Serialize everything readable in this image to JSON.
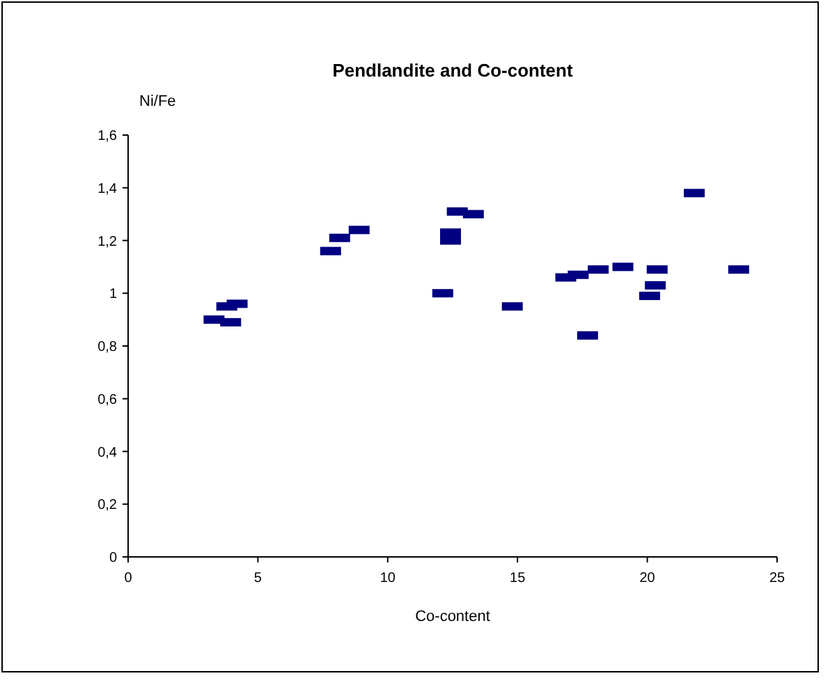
{
  "chart_data": {
    "type": "scatter",
    "title": "Pendlandite and Co-content",
    "xlabel": "Co-content",
    "ylabel": "Ni/Fe",
    "x": [
      3.31,
      3.8,
      4.2,
      3.95,
      7.8,
      8.15,
      8.9,
      12.12,
      12.68,
      13.3,
      12.42,
      12.42,
      14.8,
      16.86,
      17.34,
      18.11,
      19.06,
      20.38,
      20.31,
      20.09,
      17.7,
      21.81,
      23.52
    ],
    "series": [
      {
        "color": "#000080",
        "values": [
          0.9,
          0.95,
          0.96,
          0.89,
          1.16,
          1.21,
          1.24,
          1.0,
          1.31,
          1.3,
          1.2,
          1.23,
          0.95,
          1.06,
          1.07,
          1.09,
          1.1,
          1.09,
          1.03,
          0.99,
          0.84,
          1.38,
          1.09
        ]
      }
    ],
    "xlim": [
      0,
      25
    ],
    "xticks": [
      0,
      5,
      10,
      15,
      20,
      25
    ],
    "ylim": [
      0,
      1.6
    ],
    "yticks": [
      0,
      {
        "value": 0.2,
        "label": "0,2"
      },
      {
        "value": 0.4,
        "label": "0,4"
      },
      {
        "value": 0.6,
        "label": "0,6"
      },
      {
        "value": 0.8,
        "label": "0,8"
      },
      1,
      {
        "value": 1.2,
        "label": "1,2"
      },
      {
        "value": 1.4,
        "label": "1,4"
      },
      {
        "value": 1.6,
        "label": "1,6"
      }
    ],
    "grid": false
  }
}
